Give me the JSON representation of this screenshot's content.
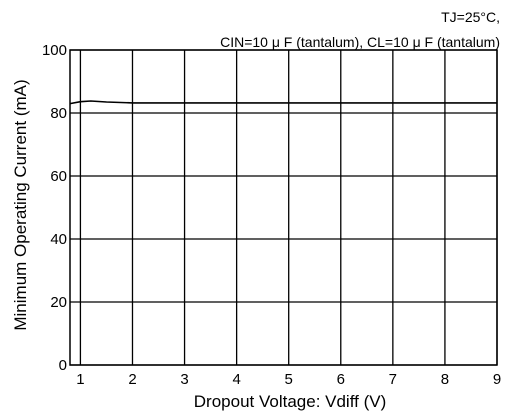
{
  "chart_data": {
    "type": "line",
    "conditions": [
      "TJ=25°C,",
      "CIN=10 μ F (tantalum), CL=10 μ F (tantalum)"
    ],
    "xlabel": "Dropout Voltage: Vdiff (V)",
    "ylabel": "Minimum Operating Current (mA)",
    "xlim": [
      0.8,
      9
    ],
    "ylim": [
      0,
      100
    ],
    "xticks": [
      1,
      2,
      3,
      4,
      5,
      6,
      7,
      8,
      9
    ],
    "yticks": [
      0,
      20,
      40,
      60,
      80,
      100
    ],
    "grid": true,
    "series": [
      {
        "x": [
          0.8,
          1.0,
          1.2,
          1.5,
          2.0,
          3.0,
          4.0,
          5.0,
          6.0,
          7.0,
          8.0,
          9.0
        ],
        "values": [
          83.0,
          83.6,
          83.8,
          83.5,
          83.2,
          83.2,
          83.2,
          83.2,
          83.2,
          83.2,
          83.2,
          83.2
        ]
      }
    ],
    "colors": {
      "axis": "#000000",
      "grid": "#000000",
      "line": "#000000"
    }
  }
}
